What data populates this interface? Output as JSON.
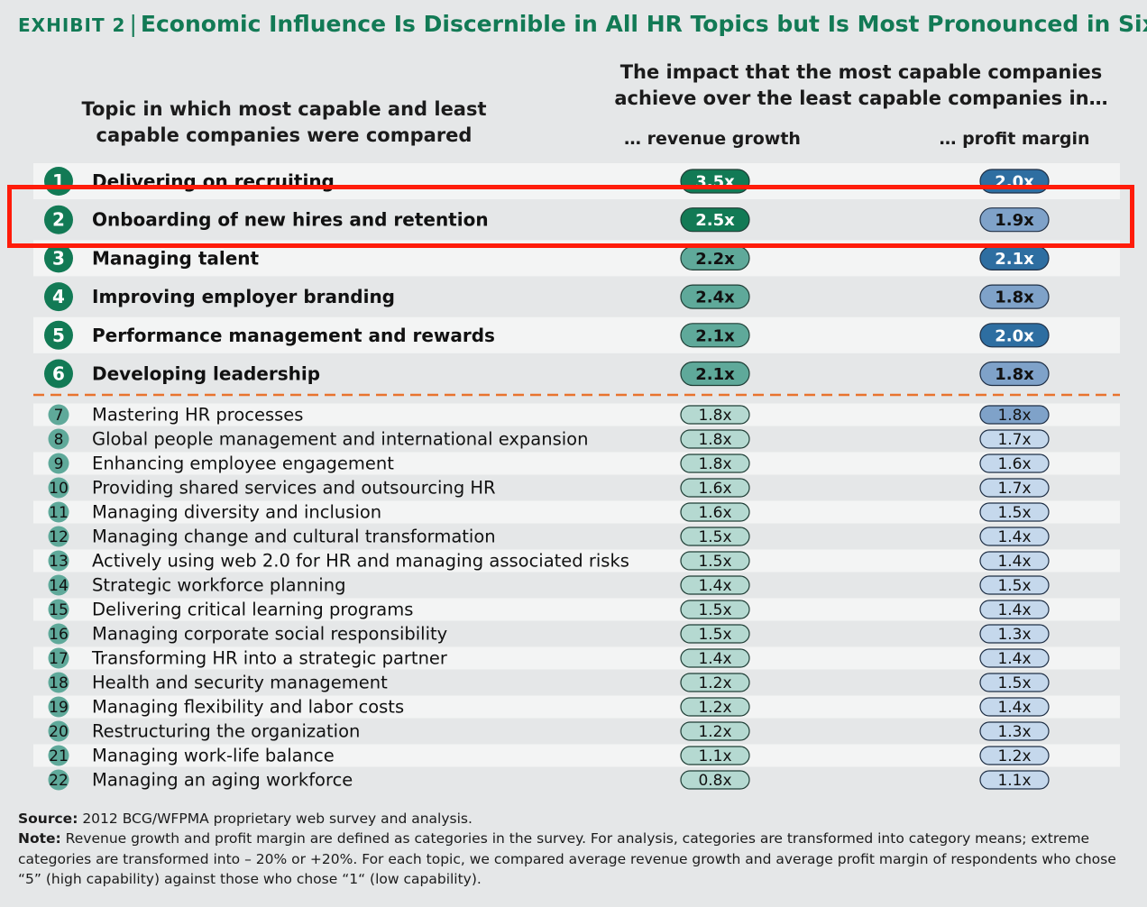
{
  "title": {
    "label": "EXHIBIT 2",
    "separator": "|",
    "text": "Economic Influence Is Discernible in All HR Topics but Is Most Pronounced in Six"
  },
  "headers": {
    "topic": "Topic in which most capable and least capable companies were compared",
    "impact": "The impact that the most capable companies achieve over the least capable companies in…",
    "revenue": "… revenue growth",
    "profit": "… profit margin"
  },
  "colors": {
    "dark_green": "#127a55",
    "mid_teal": "#5fa99a",
    "light_teal": "#b5d9d1",
    "dark_blue": "#2e6ea1",
    "mid_blue": "#7fa2c9",
    "light_blue": "#c5d8ec",
    "separator": "#e8742e",
    "highlight": "#ff1c0a"
  },
  "chart_data": {
    "type": "table",
    "columns": [
      "Topic",
      "Revenue growth",
      "Profit margin"
    ],
    "rows": [
      {
        "rank": "1",
        "topic": "Delivering on recruiting",
        "revenue": "3.5x",
        "profit": "2.0x"
      },
      {
        "rank": "2",
        "topic": "Onboarding of new hires and retention",
        "revenue": "2.5x",
        "profit": "1.9x"
      },
      {
        "rank": "3",
        "topic": "Managing talent",
        "revenue": "2.2x",
        "profit": "2.1x"
      },
      {
        "rank": "4",
        "topic": "Improving employer branding",
        "revenue": "2.4x",
        "profit": "1.8x"
      },
      {
        "rank": "5",
        "topic": "Performance management and rewards",
        "revenue": "2.1x",
        "profit": "2.0x"
      },
      {
        "rank": "6",
        "topic": "Developing leadership",
        "revenue": "2.1x",
        "profit": "1.8x"
      },
      {
        "rank": "7",
        "topic": "Mastering HR processes",
        "revenue": "1.8x",
        "profit": "1.8x"
      },
      {
        "rank": "8",
        "topic": "Global people management and international expansion",
        "revenue": "1.8x",
        "profit": "1.7x"
      },
      {
        "rank": "9",
        "topic": "Enhancing employee engagement",
        "revenue": "1.8x",
        "profit": "1.6x"
      },
      {
        "rank": "10",
        "topic": "Providing shared services and outsourcing HR",
        "revenue": "1.6x",
        "profit": "1.7x"
      },
      {
        "rank": "11",
        "topic": "Managing diversity and inclusion",
        "revenue": "1.6x",
        "profit": "1.5x"
      },
      {
        "rank": "12",
        "topic": "Managing change and cultural transformation",
        "revenue": "1.5x",
        "profit": "1.4x"
      },
      {
        "rank": "13",
        "topic": "Actively using web 2.0 for HR and managing associated risks",
        "revenue": "1.5x",
        "profit": "1.4x"
      },
      {
        "rank": "14",
        "topic": "Strategic workforce planning",
        "revenue": "1.4x",
        "profit": "1.5x"
      },
      {
        "rank": "15",
        "topic": "Delivering critical learning programs",
        "revenue": "1.5x",
        "profit": "1.4x"
      },
      {
        "rank": "16",
        "topic": "Managing corporate social responsibility",
        "revenue": "1.5x",
        "profit": "1.3x"
      },
      {
        "rank": "17",
        "topic": "Transforming HR into a strategic partner",
        "revenue": "1.4x",
        "profit": "1.4x"
      },
      {
        "rank": "18",
        "topic": "Health and security management",
        "revenue": "1.2x",
        "profit": "1.5x"
      },
      {
        "rank": "19",
        "topic": "Managing flexibility and labor costs",
        "revenue": "1.2x",
        "profit": "1.4x"
      },
      {
        "rank": "20",
        "topic": "Restructuring the organization",
        "revenue": "1.2x",
        "profit": "1.3x"
      },
      {
        "rank": "21",
        "topic": "Managing work-life balance",
        "revenue": "1.1x",
        "profit": "1.2x"
      },
      {
        "rank": "22",
        "topic": "Managing an aging workforce",
        "revenue": "0.8x",
        "profit": "1.1x"
      }
    ],
    "highlighted_rank": "2"
  },
  "footnotes": {
    "source_label": "Source:",
    "source_text": " 2012 BCG/WFPMA proprietary web survey and analysis.",
    "note_label": "Note:",
    "note_text": " Revenue growth and profit margin are defined as categories in the survey. For analysis, categories are transformed into category means; extreme categories are transformed into – 20% or +20%. For each topic, we compared average revenue growth and average profit margin of respondents who chose “5” (high capability) against those who chose “1“ (low capability)."
  }
}
